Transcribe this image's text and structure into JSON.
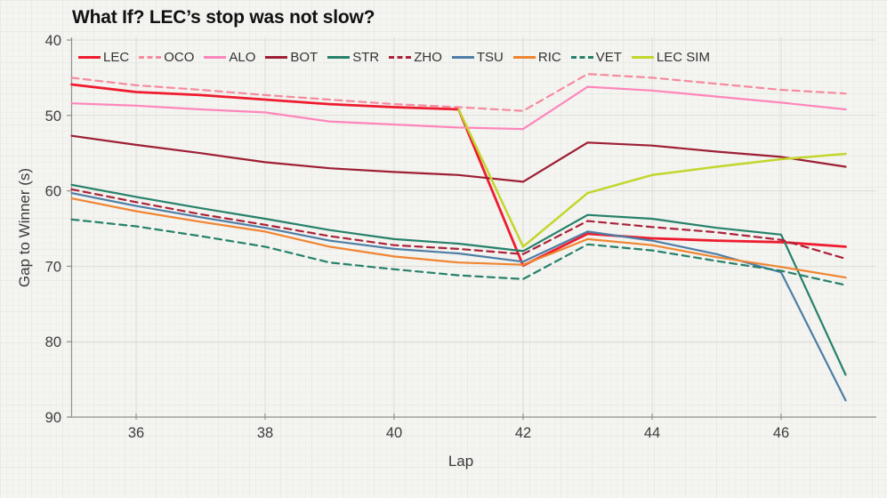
{
  "chart_data": {
    "type": "line",
    "title": "What If? LEC’s stop was not slow?",
    "xlabel": "Lap",
    "ylabel": "Gap to Winner (s)",
    "x_ticks": [
      36,
      38,
      40,
      42,
      44,
      46
    ],
    "y_ticks": [
      40,
      50,
      60,
      70,
      80,
      90
    ],
    "xlim": [
      35,
      47.6
    ],
    "ylim": [
      40,
      90
    ],
    "y_axis_inverted": true,
    "grid": true,
    "legend_position": "top-left-row",
    "series": [
      {
        "name": "LEC",
        "color": "#ee1c2e",
        "dashed": false,
        "width": 2.8,
        "x": [
          35,
          36,
          37,
          38,
          39,
          40,
          41,
          42,
          43,
          44,
          45,
          46,
          47
        ],
        "values": [
          45.9,
          46.9,
          47.3,
          47.9,
          48.5,
          48.9,
          49.2,
          69.9,
          65.7,
          66.3,
          66.6,
          66.8,
          67.4
        ]
      },
      {
        "name": "OCO",
        "color": "#f68b9e",
        "dashed": true,
        "width": 2.2,
        "x": [
          35,
          36,
          37,
          38,
          39,
          40,
          41,
          42,
          43,
          44,
          45,
          46,
          47
        ],
        "values": [
          45.0,
          46.0,
          46.6,
          47.3,
          47.9,
          48.5,
          48.9,
          49.4,
          44.5,
          45.0,
          45.8,
          46.6,
          47.1
        ]
      },
      {
        "name": "ALO",
        "color": "#fe86ba",
        "dashed": false,
        "width": 2.2,
        "x": [
          35,
          36,
          37,
          38,
          39,
          40,
          41,
          42,
          43,
          44,
          45,
          46,
          47
        ],
        "values": [
          48.4,
          48.7,
          49.2,
          49.6,
          50.8,
          51.2,
          51.6,
          51.8,
          46.2,
          46.7,
          47.5,
          48.3,
          49.2
        ]
      },
      {
        "name": "BOT",
        "color": "#9d1f33",
        "dashed": false,
        "width": 2.2,
        "x": [
          35,
          36,
          37,
          38,
          39,
          40,
          41,
          42,
          43,
          44,
          45,
          46,
          47
        ],
        "values": [
          52.7,
          53.9,
          55.0,
          56.2,
          57.0,
          57.5,
          57.9,
          58.8,
          53.6,
          54.0,
          54.8,
          55.5,
          56.8
        ]
      },
      {
        "name": "STR",
        "color": "#26816a",
        "dashed": false,
        "width": 2.2,
        "x": [
          35,
          36,
          37,
          38,
          39,
          40,
          41,
          42,
          43,
          44,
          45,
          46,
          47
        ],
        "values": [
          59.2,
          60.8,
          62.3,
          63.7,
          65.2,
          66.4,
          67.0,
          68.0,
          63.2,
          63.7,
          64.9,
          65.8,
          84.4
        ]
      },
      {
        "name": "ZHO",
        "color": "#ab2239",
        "dashed": true,
        "width": 2.2,
        "x": [
          35,
          36,
          37,
          38,
          39,
          40,
          41,
          42,
          43,
          44,
          45,
          46,
          47
        ],
        "values": [
          59.8,
          61.5,
          63.1,
          64.5,
          66.0,
          67.2,
          67.7,
          68.4,
          64.0,
          64.8,
          65.5,
          66.5,
          69.0
        ]
      },
      {
        "name": "TSU",
        "color": "#4e7ea5",
        "dashed": false,
        "width": 2.2,
        "x": [
          35,
          36,
          37,
          38,
          39,
          40,
          41,
          42,
          43,
          44,
          45,
          46,
          47
        ],
        "values": [
          60.3,
          62.0,
          63.5,
          64.9,
          66.6,
          67.7,
          68.3,
          69.4,
          65.4,
          66.6,
          68.4,
          70.8,
          87.8
        ]
      },
      {
        "name": "RIC",
        "color": "#f08531",
        "dashed": false,
        "width": 2.2,
        "x": [
          35,
          36,
          37,
          38,
          39,
          40,
          41,
          42,
          43,
          44,
          45,
          46,
          47
        ],
        "values": [
          61.0,
          62.7,
          64.1,
          65.4,
          67.4,
          68.7,
          69.5,
          69.8,
          66.4,
          67.2,
          68.8,
          70.1,
          71.5
        ]
      },
      {
        "name": "VET",
        "color": "#26816a",
        "dashed": true,
        "width": 2.2,
        "x": [
          35,
          36,
          37,
          38,
          39,
          40,
          41,
          42,
          43,
          44,
          45,
          46,
          47
        ],
        "values": [
          63.8,
          64.7,
          66.0,
          67.4,
          69.5,
          70.4,
          71.2,
          71.7,
          67.1,
          67.9,
          69.3,
          70.6,
          72.5
        ]
      },
      {
        "name": "LEC SIM",
        "color": "#c2d62b",
        "dashed": false,
        "width": 2.5,
        "x": [
          41,
          42,
          43,
          44,
          45,
          46,
          47
        ],
        "values": [
          49.2,
          67.4,
          60.3,
          57.9,
          56.8,
          55.8,
          55.1
        ]
      }
    ]
  }
}
